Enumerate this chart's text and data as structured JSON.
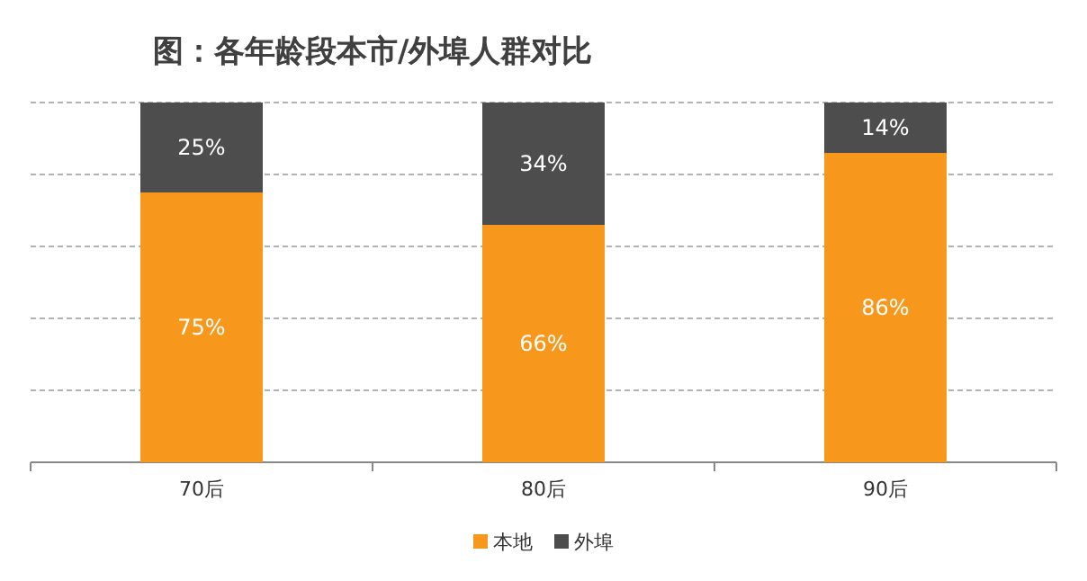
{
  "chart_data": {
    "type": "bar",
    "title": "图：各年龄段本市/外埠人群对比",
    "categories": [
      "70后",
      "80后",
      "90后"
    ],
    "stacked": true,
    "series": [
      {
        "name": "本地",
        "color": "#f7981d",
        "values": [
          75,
          66,
          86
        ],
        "value_labels": [
          "75%",
          "66%",
          "86%"
        ]
      },
      {
        "name": "外埠",
        "color": "#4d4d4d",
        "values": [
          25,
          34,
          14
        ],
        "value_labels": [
          "25%",
          "34%",
          "14%"
        ]
      }
    ],
    "ylim": [
      0,
      100
    ],
    "yticks": [
      {
        "value": 20,
        "label": null
      },
      {
        "value": 40,
        "label": null
      },
      {
        "value": 60,
        "label": null
      },
      {
        "value": 80,
        "label": null
      },
      {
        "value": 100,
        "label": null
      }
    ],
    "grid": "y",
    "legend": "bottom",
    "tick_labels": "x"
  }
}
